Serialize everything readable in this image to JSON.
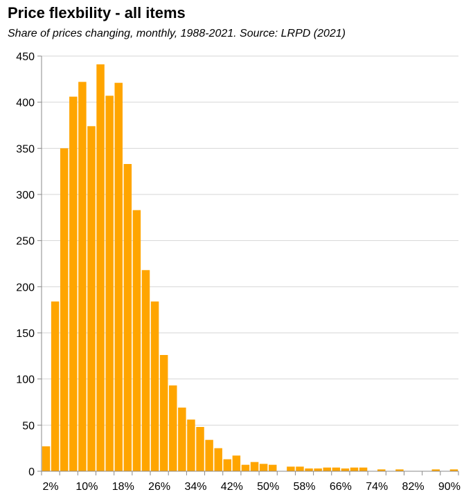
{
  "chart_data": {
    "type": "bar",
    "title": "Price flexbility - all items",
    "subtitle": "Share of prices changing, monthly, 1988-2021. Source: LRPD (2021)",
    "xlabel": "",
    "ylabel": "",
    "ylim": [
      0,
      450
    ],
    "yticks": [
      0,
      50,
      100,
      150,
      200,
      250,
      300,
      350,
      400,
      450
    ],
    "grid": true,
    "bar_color": "#FFA500",
    "x_tick_labels": [
      "2%",
      "10%",
      "18%",
      "26%",
      "34%",
      "42%",
      "50%",
      "58%",
      "66%",
      "74%",
      "82%",
      "90%"
    ],
    "values": [
      27,
      184,
      350,
      406,
      422,
      374,
      441,
      407,
      421,
      333,
      283,
      218,
      184,
      126,
      93,
      69,
      56,
      48,
      34,
      25,
      13,
      17,
      7,
      10,
      8,
      7,
      0,
      5,
      5,
      3,
      3,
      4,
      4,
      3,
      4,
      4,
      0,
      2,
      0,
      2,
      0,
      0,
      0,
      2,
      0,
      2
    ]
  }
}
